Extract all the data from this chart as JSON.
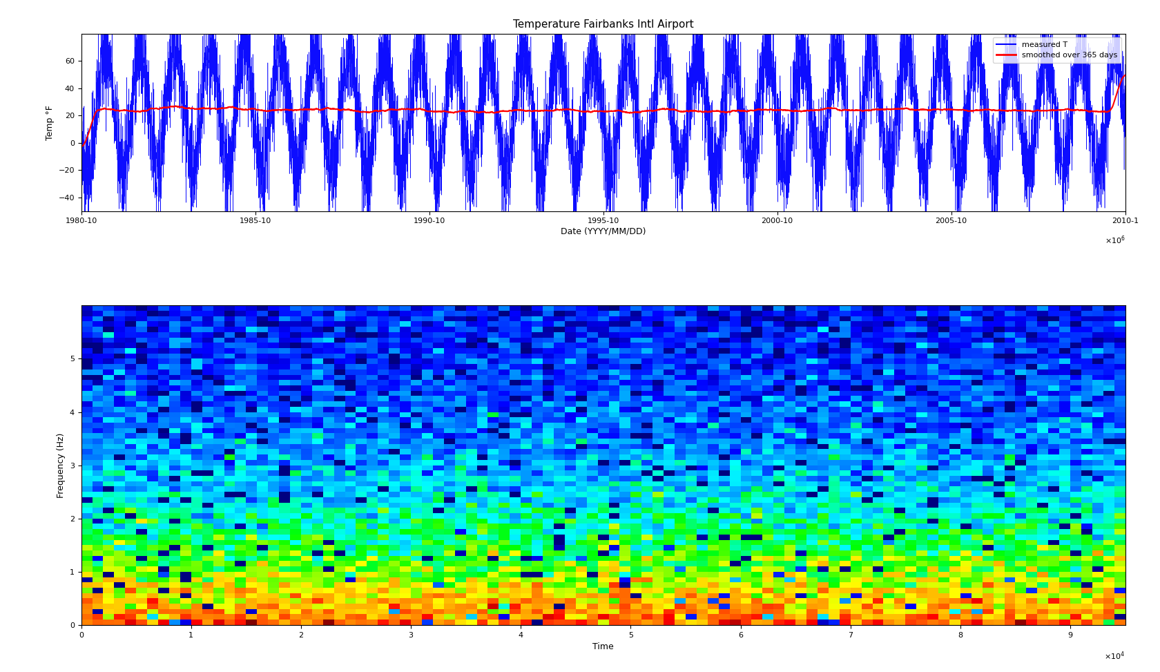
{
  "title": "Temperature Fairbanks Intl Airport",
  "top_ylabel": "Temp °F",
  "top_xlabel": "Date (YYYY/MM/DD)",
  "bottom_xlabel": "Time",
  "bottom_ylabel": "Frequency (Hz)",
  "legend_measured": "measured T",
  "legend_smoothed": "smoothed over 365 days",
  "temp_ylim": [
    -50,
    80
  ],
  "temp_yticks": [
    -40,
    -20,
    0,
    20,
    40,
    60
  ],
  "freq_ylim": [
    0,
    6
  ],
  "freq_yticks": [
    0,
    1,
    2,
    3,
    4,
    5
  ],
  "time_xticks_labels": [
    "1980-10",
    "1985-10",
    "1990-10",
    "1995-10",
    "2000-10",
    "2005-10",
    "2010-1"
  ],
  "spec_xticks": [
    0,
    1,
    2,
    3,
    4,
    5,
    6,
    7,
    8,
    9
  ],
  "background_color": "#ffffff",
  "line_color_measured": "#0000ff",
  "line_color_smoothed": "#ff0000"
}
